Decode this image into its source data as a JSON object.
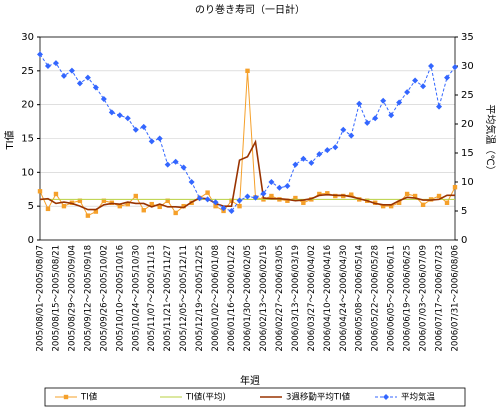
{
  "chart_data": {
    "type": "line",
    "title": "のり巻き寿司（一日計）",
    "x_label": "年週",
    "y_label": "TI値",
    "y2_label": "平均気温（℃）",
    "categories": [
      "2005/08/01～2005/08/07",
      null,
      "2005/08/15～2005/08/21",
      null,
      "2005/08/29～2005/09/04",
      null,
      "2005/09/12～2005/09/18",
      null,
      "2005/09/26～2005/10/02",
      null,
      "2005/10/10～2005/10/16",
      null,
      "2005/10/24～2005/10/30",
      null,
      "2005/11/07～2005/11/13",
      null,
      "2005/11/21～2005/11/27",
      null,
      "2005/12/05～2005/12/11",
      null,
      "2005/12/19～2005/12/25",
      null,
      "2006/01/02～2006/01/08",
      null,
      "2006/01/16～2006/01/22",
      null,
      "2006/01/30～2006/02/05",
      null,
      "2006/02/13～2006/02/19",
      null,
      "2006/02/27～2006/03/05",
      null,
      "2006/03/13～2006/03/19",
      null,
      "2006/03/27～2006/04/02",
      null,
      "2006/04/10～2006/04/16",
      null,
      "2006/04/24～2006/04/30",
      null,
      "2006/05/08～2006/05/14",
      null,
      "2006/05/22～2006/05/28",
      null,
      "2006/06/05～2006/06/11",
      null,
      "2006/06/19～2006/06/25",
      null,
      "2006/07/03～2006/07/09",
      null,
      "2006/07/17～2006/07/23",
      null,
      "2006/07/31～2006/08/06"
    ],
    "series": [
      {
        "name": "TI値",
        "color": "#f5a02a",
        "marker": "square",
        "dashed": false,
        "values": [
          7.2,
          4.6,
          6.8,
          5.0,
          5.5,
          5.8,
          3.6,
          4.2,
          5.8,
          5.5,
          5.0,
          5.3,
          6.5,
          4.4,
          5.3,
          4.9,
          5.8,
          4.0,
          5.0,
          5.5,
          6.2,
          7.0,
          5.0,
          4.3,
          5.8,
          5.0,
          25.0,
          6.3,
          6.0,
          6.5,
          6.0,
          5.8,
          6.2,
          5.5,
          6.0,
          6.8,
          6.9,
          6.5,
          6.5,
          6.7,
          6.0,
          5.8,
          5.5,
          5.0,
          5.0,
          5.5,
          6.8,
          6.5,
          5.2,
          6.0,
          6.5,
          5.5,
          7.8
        ]
      },
      {
        "name": "TI値(平均)",
        "color": "#b8d040",
        "marker": "none",
        "dashed": false,
        "values": [
          6.0,
          6.0,
          6.0,
          6.0,
          6.0,
          6.0,
          6.0,
          6.0,
          6.0,
          6.0,
          6.0,
          6.0,
          6.0,
          6.0,
          6.0,
          6.0,
          6.0,
          6.0,
          6.0,
          6.0,
          6.0,
          6.0,
          6.0,
          6.0,
          6.0,
          6.0,
          6.0,
          6.0,
          6.0,
          6.0,
          6.0,
          6.0,
          6.0,
          6.0,
          6.0,
          6.0,
          6.0,
          6.0,
          6.0,
          6.0,
          6.0,
          6.0,
          6.0,
          6.0,
          6.0,
          6.0,
          6.0,
          6.0,
          6.0,
          6.0,
          6.0,
          6.0,
          6.0
        ]
      },
      {
        "name": "3週移動平均TI値",
        "color": "#993300",
        "marker": "none",
        "dashed": false,
        "values": [
          6.0,
          6.1,
          5.4,
          5.6,
          5.4,
          5.0,
          4.5,
          4.5,
          5.2,
          5.4,
          5.3,
          5.6,
          5.4,
          5.4,
          4.9,
          5.3,
          4.9,
          4.9,
          4.8,
          5.6,
          6.2,
          6.1,
          5.4,
          5.0,
          5.0,
          11.8,
          12.3,
          14.5,
          6.2,
          6.1,
          6.1,
          6.0,
          5.8,
          5.9,
          6.1,
          6.6,
          6.7,
          6.6,
          6.6,
          6.4,
          6.1,
          5.8,
          5.4,
          5.2,
          5.2,
          5.8,
          6.3,
          6.2,
          5.9,
          5.9,
          6.0,
          6.6,
          6.6
        ]
      },
      {
        "name": "平均気温",
        "color": "#3366ff",
        "marker": "diamond",
        "dashed": true,
        "axis": "y2",
        "values": [
          32.0,
          30.0,
          30.5,
          28.3,
          29.2,
          27.0,
          28.0,
          26.3,
          24.3,
          22.0,
          21.5,
          21.0,
          19.0,
          19.5,
          17.0,
          17.5,
          13.0,
          13.5,
          12.5,
          10.0,
          7.2,
          7.0,
          6.5,
          5.5,
          5.0,
          6.8,
          7.5,
          7.3,
          8.0,
          10.0,
          9.0,
          9.3,
          13.0,
          14.0,
          13.3,
          14.8,
          15.5,
          16.0,
          19.0,
          18.0,
          23.5,
          20.2,
          21.0,
          24.0,
          21.5,
          23.7,
          25.5,
          27.5,
          26.5,
          30.0,
          23.0,
          28.0,
          29.8
        ]
      }
    ],
    "ylim": [
      0,
      30
    ],
    "yticks": [
      0,
      5,
      10,
      15,
      20,
      25,
      30
    ],
    "y2lim": [
      0,
      35
    ],
    "y2ticks": [
      0,
      5,
      10,
      15,
      20,
      25,
      30,
      35
    ],
    "grid": true,
    "legend": "bottom"
  }
}
